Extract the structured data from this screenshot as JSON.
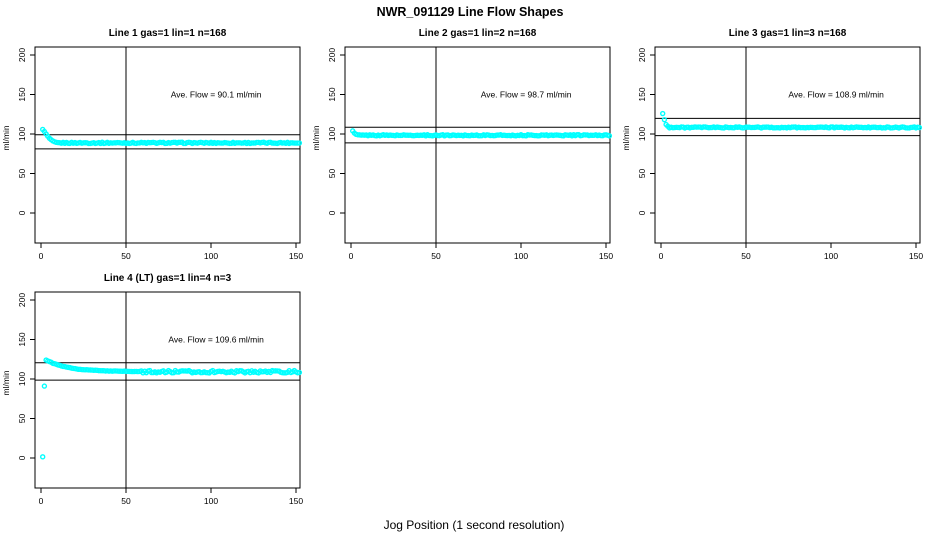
{
  "title": "NWR_091129  Line Flow Shapes",
  "xlabel": "Jog Position (1 second resolution)",
  "ylabel": "ml/min",
  "colors": {
    "point": "#00FFFF",
    "axis": "#000000",
    "background": "#FFFFFF"
  },
  "chart_data": {
    "type": "scatter",
    "title": "NWR_091129  Line Flow Shapes",
    "xlabel": "Jog Position (1 second resolution)",
    "ylabel": "ml/min",
    "x_ticks": [
      0,
      50,
      100,
      150
    ],
    "y_ticks": [
      0,
      50,
      100,
      150,
      200
    ],
    "xlim": [
      0,
      155
    ],
    "ylim": [
      -35,
      210
    ],
    "grid": false,
    "vline_x": 50,
    "marker": "open-circle",
    "marker_color": "#00FFFF",
    "plots": [
      {
        "title": "Line 1 gas=1 lin=1 n=168",
        "gas": 1,
        "lin": 1,
        "n": 168,
        "ave_flow": 90.1,
        "annotation": "Ave. Flow =  90.1  ml/min",
        "ref_lines": [
          99.1,
          81.1
        ],
        "series": {
          "x_start": 1,
          "x_end": 152,
          "transient": [
            [
              1,
              106
            ],
            [
              2,
              103
            ],
            [
              3,
              100
            ],
            [
              4,
              97
            ],
            [
              5,
              94.5
            ],
            [
              6,
              92.5
            ],
            [
              7,
              91
            ],
            [
              8,
              90
            ],
            [
              9,
              89.2
            ]
          ],
          "settle": 88.8,
          "noise": 0.8,
          "seed": 1,
          "outliers": []
        }
      },
      {
        "title": "Line 2 gas=1 lin=2 n=168",
        "gas": 1,
        "lin": 2,
        "n": 168,
        "ave_flow": 98.7,
        "annotation": "Ave. Flow =  98.7  ml/min",
        "ref_lines": [
          108.6,
          88.8
        ],
        "series": {
          "x_start": 1,
          "x_end": 152,
          "transient": [
            [
              1,
              104
            ],
            [
              2,
              101
            ],
            [
              3,
              99.5
            ],
            [
              4,
              99
            ]
          ],
          "settle": 98.4,
          "noise": 0.7,
          "seed": 2,
          "outliers": []
        }
      },
      {
        "title": "Line 3 gas=1 lin=3 n=168",
        "gas": 1,
        "lin": 3,
        "n": 168,
        "ave_flow": 108.9,
        "annotation": "Ave. Flow =  108.9  ml/min",
        "ref_lines": [
          119.8,
          98.0
        ],
        "series": {
          "x_start": 1,
          "x_end": 152,
          "transient": [
            [
              1,
              126
            ],
            [
              2,
              118
            ],
            [
              3,
              112
            ],
            [
              4,
              110
            ]
          ],
          "settle": 108.3,
          "noise": 0.7,
          "seed": 3,
          "outliers": []
        }
      },
      {
        "title": "Line 4 (LT) gas=1 lin=4 n=3",
        "gas": 1,
        "lin": 4,
        "n": 3,
        "ave_flow": 109.6,
        "annotation": "Ave. Flow =  109.6  ml/min",
        "ref_lines": [
          120.6,
          98.6
        ],
        "series": {
          "x_start": 3,
          "x_end": 152,
          "transient": [
            [
              3,
              124
            ],
            [
              4,
              123
            ],
            [
              5,
              122
            ],
            [
              7,
              120
            ],
            [
              9,
              118.5
            ],
            [
              12,
              116.5
            ],
            [
              15,
              115
            ],
            [
              18,
              113.8
            ],
            [
              22,
              112.5
            ],
            [
              26,
              111.8
            ],
            [
              30,
              111.2
            ],
            [
              36,
              110.5
            ],
            [
              42,
              110
            ],
            [
              50,
              109.7
            ],
            [
              58,
              109.4
            ]
          ],
          "settle": 109.2,
          "noise": 1.5,
          "seed": 4,
          "outliers": [
            [
              1,
              1.5
            ],
            [
              2,
              91
            ]
          ]
        }
      }
    ]
  }
}
